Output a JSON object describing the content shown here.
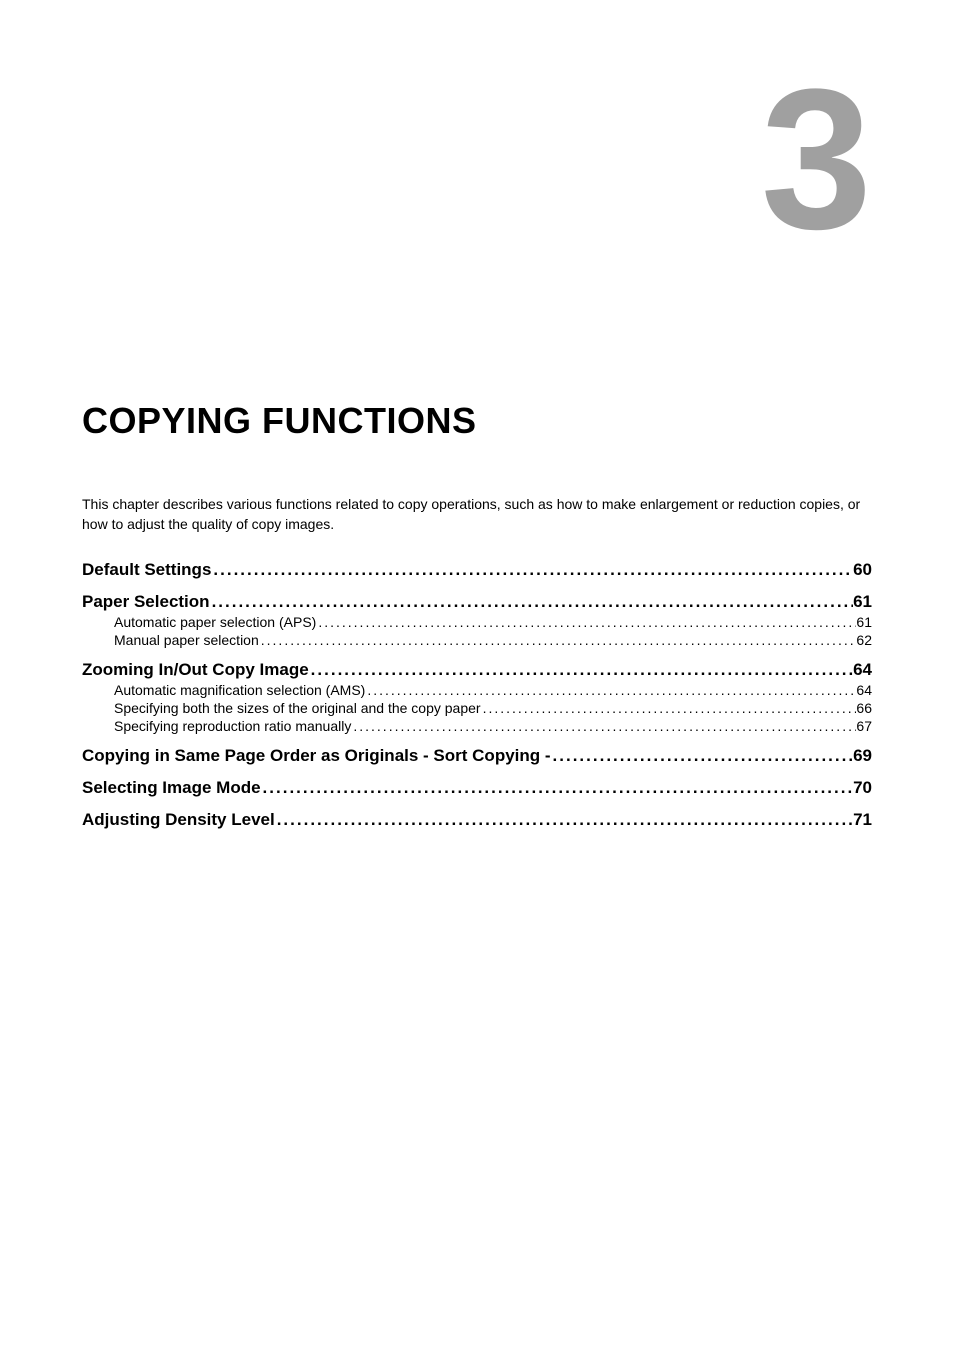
{
  "chapter": {
    "number": "3",
    "title": "COPYING FUNCTIONS",
    "description": "This chapter describes various functions related to copy operations, such as how to make enlargement or reduction copies, or how to adjust the quality of copy images."
  },
  "colors": {
    "chapter_number": "#a0a0a0",
    "text": "#000000",
    "background": "#ffffff"
  },
  "typography": {
    "chapter_number_fontsize": 200,
    "chapter_title_fontsize": 36,
    "section_fontsize": 17,
    "sub_fontsize": 14,
    "desc_fontsize": 14
  },
  "toc": {
    "entries": [
      {
        "level": "section",
        "label": "Default Settings",
        "page": "60"
      },
      {
        "level": "section",
        "label": "Paper Selection",
        "page": "61"
      },
      {
        "level": "sub",
        "label": "Automatic paper selection (APS)",
        "page": "61"
      },
      {
        "level": "sub",
        "label": "Manual paper selection",
        "page": "62"
      },
      {
        "level": "section",
        "label": "Zooming In/Out Copy Image",
        "page": "64"
      },
      {
        "level": "sub",
        "label": "Automatic magnification selection (AMS)",
        "page": "64"
      },
      {
        "level": "sub",
        "label": "Specifying both the sizes of the original and the copy paper",
        "page": "66"
      },
      {
        "level": "sub",
        "label": "Specifying reproduction ratio manually",
        "page": "67"
      },
      {
        "level": "section",
        "label": "Copying in Same Page Order as Originals - Sort Copying -",
        "page": "69"
      },
      {
        "level": "section",
        "label": "Selecting Image Mode",
        "page": "70"
      },
      {
        "level": "section",
        "label": "Adjusting Density Level",
        "page": "71"
      }
    ]
  }
}
